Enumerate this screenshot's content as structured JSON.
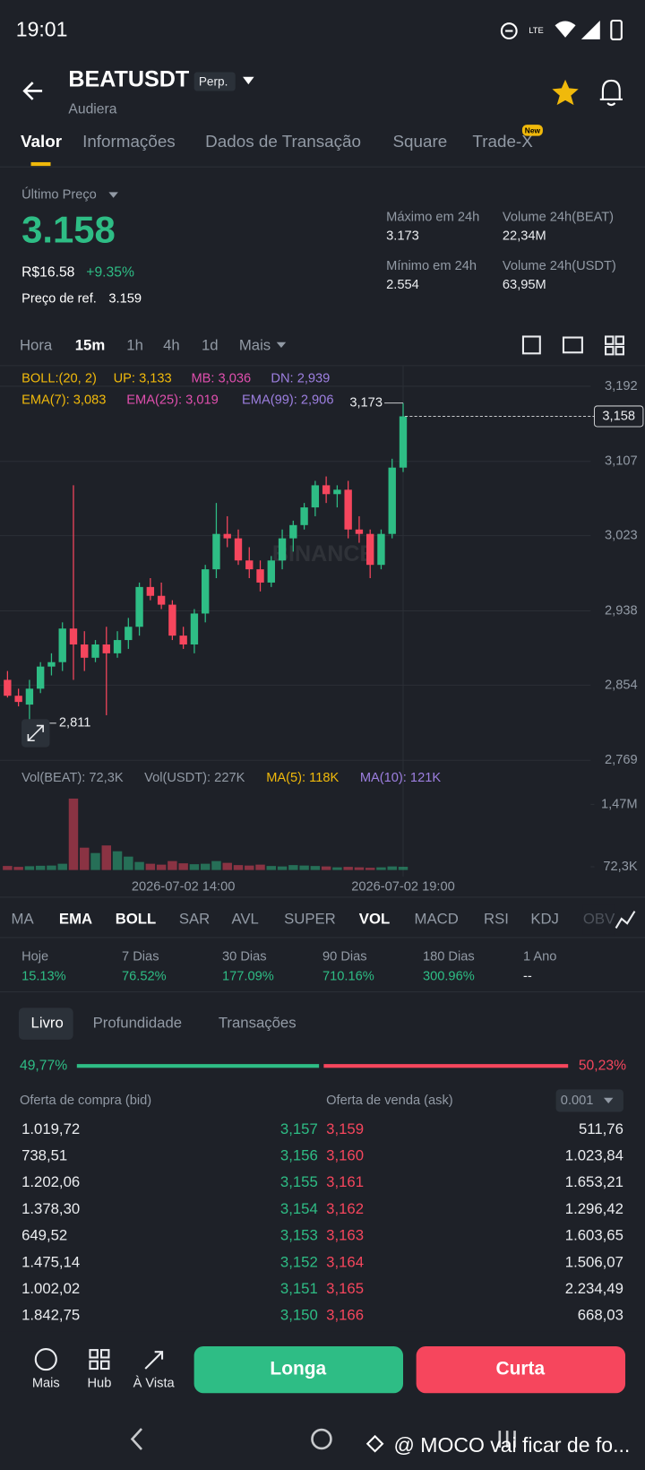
{
  "status_bar": {
    "time": "19:01"
  },
  "header": {
    "symbol": "BEATUSDT",
    "badge": "Perp.",
    "subtitle": "Audiera"
  },
  "tabs": {
    "items": [
      "Valor",
      "Informações",
      "Dados de Transação",
      "Square",
      "Trade-X"
    ],
    "badge": "New"
  },
  "price": {
    "label": "Último Preço",
    "last": "3.158",
    "fiat": "R$16.58",
    "change": "+9.35%",
    "ref_label": "Preço de ref.",
    "ref_value": "3.159"
  },
  "stats": [
    {
      "label": "Máximo em 24h",
      "value": "3.173"
    },
    {
      "label": "Volume 24h(BEAT)",
      "value": "22,34M"
    },
    {
      "label": "Mínimo em 24h",
      "value": "2.554"
    },
    {
      "label": "Volume 24h(USDT)",
      "value": "63,95M"
    }
  ],
  "intervals": [
    "Hora",
    "15m",
    "1h",
    "4h",
    "1d",
    "Mais"
  ],
  "chart_data": {
    "type": "candlestick",
    "legend": {
      "boll": [
        {
          "text": "BOLL:(20, 2)",
          "color": "#f0b90b"
        },
        {
          "text": "UP: 3,133",
          "color": "#f0b90b"
        },
        {
          "text": "MB: 3,036",
          "color": "#e04fae"
        },
        {
          "text": "DN: 2,939",
          "color": "#9d7fe0"
        }
      ],
      "ema": [
        {
          "text": "EMA(7): 3,083",
          "color": "#f0b90b"
        },
        {
          "text": "EMA(25): 3,019",
          "color": "#e04fae"
        },
        {
          "text": "EMA(99): 2,906",
          "color": "#9d7fe0"
        }
      ],
      "volume": [
        {
          "text": "Vol(BEAT): 72,3K",
          "color": "#929aa5"
        },
        {
          "text": "Vol(USDT): 227K",
          "color": "#929aa5"
        },
        {
          "text": "MA(5): 118K",
          "color": "#f0b90b"
        },
        {
          "text": "MA(10): 121K",
          "color": "#9d7fe0"
        }
      ]
    },
    "watermark": "BINANCE",
    "categories": [
      null,
      null,
      null,
      null,
      null,
      null,
      null,
      null,
      null,
      null,
      null,
      null,
      null,
      null,
      null,
      null,
      "2026-07-02 14:00",
      null,
      null,
      null,
      null,
      null,
      null,
      null,
      null,
      null,
      null,
      null,
      null,
      null,
      null,
      null,
      null,
      null,
      null,
      null,
      "2026-07-02 19:00"
    ],
    "open": [
      2.86,
      2.842,
      2.832,
      2.85,
      2.875,
      2.88,
      2.918,
      2.9,
      2.885,
      2.9,
      2.89,
      2.905,
      2.92,
      2.965,
      2.955,
      2.945,
      2.91,
      2.9,
      2.935,
      2.985,
      3.025,
      3.02,
      2.995,
      2.985,
      2.97,
      2.995,
      3.02,
      3.035,
      3.055,
      3.08,
      3.07,
      3.075,
      3.03,
      3.025,
      2.99,
      3.025,
      3.1
    ],
    "high": [
      2.87,
      2.85,
      2.86,
      2.88,
      2.89,
      2.925,
      3.08,
      2.915,
      2.905,
      2.92,
      2.915,
      2.93,
      2.97,
      2.975,
      2.97,
      2.95,
      2.92,
      2.94,
      2.99,
      3.06,
      3.045,
      3.03,
      3.01,
      2.995,
      3.0,
      3.03,
      3.04,
      3.06,
      3.085,
      3.09,
      3.08,
      3.085,
      3.045,
      3.03,
      3.03,
      3.11,
      3.173
    ],
    "low": [
      2.84,
      2.83,
      2.811,
      2.845,
      2.865,
      2.87,
      2.86,
      2.87,
      2.88,
      2.82,
      2.885,
      2.895,
      2.91,
      2.95,
      2.94,
      2.905,
      2.895,
      2.89,
      2.925,
      2.975,
      3.01,
      2.99,
      2.975,
      2.96,
      2.965,
      2.985,
      3.005,
      3.03,
      3.045,
      3.06,
      3.055,
      3.02,
      3.015,
      2.975,
      2.985,
      3.02,
      3.095
    ],
    "close": [
      2.842,
      2.835,
      2.85,
      2.875,
      2.88,
      2.918,
      2.9,
      2.885,
      2.9,
      2.89,
      2.905,
      2.92,
      2.965,
      2.955,
      2.945,
      2.91,
      2.9,
      2.935,
      2.985,
      3.025,
      3.02,
      2.995,
      2.985,
      2.97,
      2.995,
      3.02,
      3.035,
      3.055,
      3.08,
      3.07,
      3.075,
      3.03,
      3.025,
      2.99,
      3.025,
      3.1,
      3.158
    ],
    "volume": [
      90000,
      70000,
      85000,
      95000,
      100000,
      140000,
      1600000,
      500000,
      380000,
      550000,
      420000,
      300000,
      180000,
      140000,
      120000,
      200000,
      150000,
      130000,
      140000,
      200000,
      160000,
      110000,
      100000,
      120000,
      90000,
      80000,
      110000,
      100000,
      90000,
      80000,
      60000,
      70000,
      60000,
      50000,
      60000,
      80000,
      72300
    ],
    "up_color": "#2ebd85",
    "down_color": "#f6465d",
    "ylim": [
      2.769,
      3.192
    ],
    "yticks": [
      {
        "value": 3.192,
        "label": "3,192"
      },
      {
        "value": 3.107,
        "label": "3,107"
      },
      {
        "value": 3.023,
        "label": "3,023"
      },
      {
        "value": 2.938,
        "label": "2,938"
      },
      {
        "value": 2.854,
        "label": "2,854"
      },
      {
        "value": 2.769,
        "label": "2,769"
      }
    ],
    "grid": true,
    "volume_ylim": [
      0,
      1680000
    ],
    "volume_yticks": [
      {
        "value": 1470000,
        "label": "1,47M"
      },
      {
        "value": 72300,
        "label": "72,3K"
      }
    ],
    "last_price": {
      "value": 3.158,
      "label": "3,158"
    },
    "high_marker": {
      "value": 3.173,
      "label": "3,173"
    },
    "low_marker": {
      "value": 2.811,
      "label": "2,811"
    }
  },
  "indicators": [
    "MA",
    "EMA",
    "BOLL",
    "SAR",
    "AVL",
    "SUPER",
    "VOL",
    "MACD",
    "RSI",
    "KDJ",
    "OBV"
  ],
  "performance": [
    {
      "label": "Hoje",
      "value": "15.13%"
    },
    {
      "label": "7 Dias",
      "value": "76.52%"
    },
    {
      "label": "30 Dias",
      "value": "177.09%"
    },
    {
      "label": "90 Dias",
      "value": "710.16%"
    },
    {
      "label": "180 Dias",
      "value": "300.96%"
    },
    {
      "label": "1 Ano",
      "value": "--"
    }
  ],
  "order_book": {
    "tabs": [
      "Livro",
      "Profundidade",
      "Transações"
    ],
    "depth_ratio": {
      "values": [
        49.77,
        50.23
      ],
      "value_labels": [
        "49,77%",
        "50,23%"
      ],
      "colors": [
        "#2ebd85",
        "#f6465d"
      ]
    },
    "bid_header": "Oferta de compra (bid)",
    "ask_header": "Oferta de venda (ask)",
    "precision": "0.001",
    "bids": [
      {
        "amount": "1.019,72",
        "price": "3,157"
      },
      {
        "amount": "738,51",
        "price": "3,156"
      },
      {
        "amount": "1.202,06",
        "price": "3,155"
      },
      {
        "amount": "1.378,30",
        "price": "3,154"
      },
      {
        "amount": "649,52",
        "price": "3,153"
      },
      {
        "amount": "1.475,14",
        "price": "3,152"
      },
      {
        "amount": "1.002,02",
        "price": "3,151"
      },
      {
        "amount": "1.842,75",
        "price": "3,150"
      }
    ],
    "asks": [
      {
        "price": "3,159",
        "amount": "511,76"
      },
      {
        "price": "3,160",
        "amount": "1.023,84"
      },
      {
        "price": "3,161",
        "amount": "1.653,21"
      },
      {
        "price": "3,162",
        "amount": "1.296,42"
      },
      {
        "price": "3,163",
        "amount": "1.603,65"
      },
      {
        "price": "3,164",
        "amount": "1.506,07"
      },
      {
        "price": "3,165",
        "amount": "2.234,49"
      },
      {
        "price": "3,166",
        "amount": "668,03"
      }
    ]
  },
  "bottom_bar": {
    "actions": [
      "Mais",
      "Hub",
      "À Vista"
    ],
    "long": "Longa",
    "short": "Curta"
  },
  "overlay_text": "@ MOCO vai ficar de fo..."
}
